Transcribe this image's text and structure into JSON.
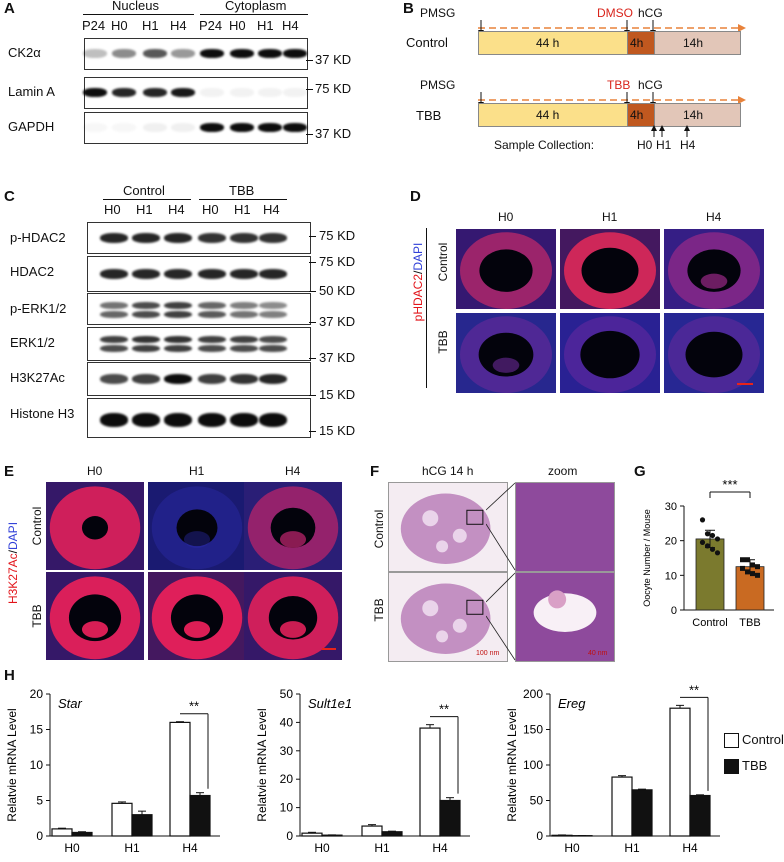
{
  "panels": {
    "A": {
      "label": "A",
      "groups": [
        "Nucleus",
        "Cytoplasm"
      ],
      "lanes": [
        "P24",
        "H0",
        "H1",
        "H4",
        "P24",
        "H0",
        "H1",
        "H4"
      ],
      "rows": [
        {
          "name": "CK2α",
          "kd": "37 KD"
        },
        {
          "name": "Lamin A",
          "kd": "75 KD"
        },
        {
          "name": "GAPDH",
          "kd": "37 KD"
        }
      ]
    },
    "B": {
      "label": "B",
      "control": {
        "name": "Control",
        "pmsg": "PMSG",
        "drug": "DMSO",
        "hcg": "hCG",
        "seg1": "44 h",
        "seg2": "4h",
        "seg3": "14h"
      },
      "tbb": {
        "name": "TBB",
        "pmsg": "PMSG",
        "drug": "TBB",
        "hcg": "hCG",
        "seg1": "44 h",
        "seg2": "4h",
        "seg3": "14h"
      },
      "sample_collection": "Sample Collection:",
      "points": [
        "H0",
        "H1",
        "H4"
      ],
      "colors": {
        "seg1": "#fbe08a",
        "seg2": "#c0581f",
        "seg3": "#e2c6b8",
        "arrow": "#e8823a",
        "drug": "#d9241b"
      }
    },
    "C": {
      "label": "C",
      "groups": [
        "Control",
        "TBB"
      ],
      "lanes": [
        "H0",
        "H1",
        "H4",
        "H0",
        "H1",
        "H4"
      ],
      "rows": [
        {
          "name": "p-HDAC2",
          "kd": "75 KD"
        },
        {
          "name": "HDAC2",
          "kd": "75 KD",
          "kd2": "50 KD"
        },
        {
          "name": "p-ERK1/2",
          "kd": "37 KD"
        },
        {
          "name": "ERK1/2",
          "kd": "37 KD"
        },
        {
          "name": "H3K27Ac",
          "kd": "15 KD"
        },
        {
          "name": "Histone H3",
          "kd": "15 KD"
        }
      ]
    },
    "D": {
      "label": "D",
      "cols": [
        "H0",
        "H1",
        "H4"
      ],
      "rows": [
        "Control",
        "TBB"
      ],
      "stain_red": "pHDAC2",
      "stain_sep": "/",
      "stain_blue": "DAPI"
    },
    "E": {
      "label": "E",
      "cols": [
        "H0",
        "H1",
        "H4"
      ],
      "rows": [
        "Control",
        "TBB"
      ],
      "stain_red": "H3K27Ac",
      "stain_sep": "/",
      "stain_blue": "DAPI"
    },
    "F": {
      "label": "F",
      "cols": [
        "hCG 14 h",
        "zoom"
      ],
      "rows": [
        "Control",
        "TBB"
      ],
      "scale1": "100 nm",
      "scale2": "40 nm"
    },
    "G": {
      "label": "G",
      "significance": "***"
    },
    "H": {
      "label": "H"
    }
  },
  "chart_data": [
    {
      "panel": "G",
      "type": "bar",
      "categories": [
        "Control",
        "TBB"
      ],
      "values": [
        20.5,
        12.5
      ],
      "errors": [
        2.5,
        2.0
      ],
      "points": [
        [
          26,
          22,
          21.5,
          20.5,
          19.5,
          18.5,
          17.5,
          16.5
        ],
        [
          14.5,
          14.5,
          13,
          12.5,
          12,
          11,
          10.5,
          10
        ]
      ],
      "colors": [
        "#7b7a2e",
        "#c96a22"
      ],
      "ylabel": "Oocyte Number / Mouse",
      "ylim": [
        0,
        30
      ],
      "yticks": [
        0,
        10,
        20,
        30
      ],
      "significance": "***"
    },
    {
      "panel": "H",
      "type": "bar",
      "title": "Star",
      "categories": [
        "H0",
        "H1",
        "H4"
      ],
      "series": [
        {
          "name": "Control",
          "values": [
            1.0,
            4.6,
            16.0
          ],
          "errors": [
            0.1,
            0.2,
            0.1
          ]
        },
        {
          "name": "TBB",
          "values": [
            0.5,
            3.0,
            5.7
          ],
          "errors": [
            0.1,
            0.5,
            0.4
          ]
        }
      ],
      "ylabel": "Relatvie mRNA Level",
      "ylim": [
        0,
        20
      ],
      "yticks": [
        0,
        5,
        10,
        15,
        20
      ],
      "significance": "**"
    },
    {
      "panel": "H",
      "type": "bar",
      "title": "Sult1e1",
      "categories": [
        "H0",
        "H1",
        "H4"
      ],
      "series": [
        {
          "name": "Control",
          "values": [
            1.0,
            3.5,
            38.0
          ],
          "errors": [
            0.3,
            0.5,
            1.2
          ]
        },
        {
          "name": "TBB",
          "values": [
            0.3,
            1.5,
            12.5
          ],
          "errors": [
            0.1,
            0.2,
            1.0
          ]
        }
      ],
      "ylabel": "Relatvie mRNA Level",
      "ylim": [
        0,
        50
      ],
      "yticks": [
        0,
        10,
        20,
        30,
        40,
        50
      ],
      "significance": "**"
    },
    {
      "panel": "H",
      "type": "bar",
      "title": "Ereg",
      "categories": [
        "H0",
        "H1",
        "H4"
      ],
      "series": [
        {
          "name": "Control",
          "values": [
            1.0,
            83.0,
            180.0
          ],
          "errors": [
            0.5,
            2.0,
            4.0
          ]
        },
        {
          "name": "TBB",
          "values": [
            0.5,
            65.0,
            57.0
          ],
          "errors": [
            0.2,
            1.0,
            1.0
          ]
        }
      ],
      "ylabel": "Relatvie mRNA Level",
      "ylim": [
        0,
        200
      ],
      "yticks": [
        0,
        50,
        100,
        150,
        200
      ],
      "significance": "**"
    }
  ],
  "legend_h": [
    "Control",
    "TBB"
  ]
}
